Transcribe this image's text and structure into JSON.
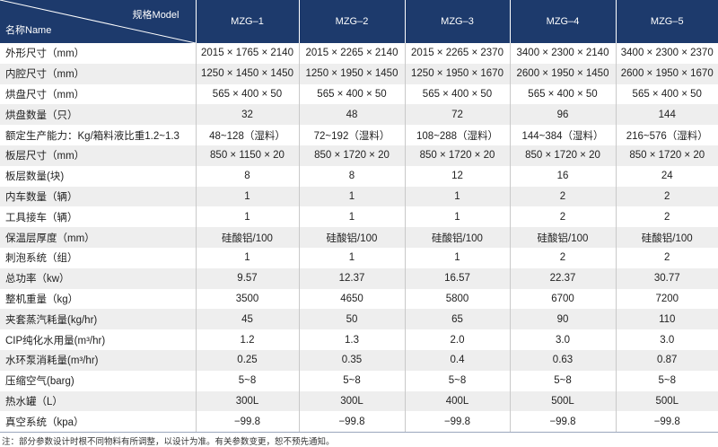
{
  "header": {
    "corner_top": "规格Model",
    "corner_bottom": "名称Name",
    "models": [
      "MZG–1",
      "MZG–2",
      "MZG–3",
      "MZG–4",
      "MZG–5"
    ]
  },
  "rows": [
    {
      "label": "外形尺寸（mm）",
      "cells": [
        "2015 × 1765 × 2140",
        "2015 × 2265 × 2140",
        "2015 × 2265 × 2370",
        "3400 × 2300 × 2140",
        "3400 × 2300 × 2370"
      ]
    },
    {
      "label": "内腔尺寸（mm）",
      "cells": [
        "1250 × 1450 × 1450",
        "1250 × 1950 × 1450",
        "1250 × 1950 × 1670",
        "2600 × 1950 × 1450",
        "2600 × 1950 × 1670"
      ]
    },
    {
      "label": "烘盘尺寸（mm）",
      "cells": [
        "565 × 400 × 50",
        "565 × 400 × 50",
        "565 × 400 × 50",
        "565 × 400 × 50",
        "565 × 400 × 50"
      ]
    },
    {
      "label": "烘盘数量（只）",
      "cells": [
        "32",
        "48",
        "72",
        "96",
        "144"
      ]
    },
    {
      "label": "额定生产能力：Kg/箱料液比重1.2~1.3",
      "cells": [
        "48~128（湿料）",
        "72~192（湿料）",
        "108~288（湿料）",
        "144~384（湿料）",
        "216~576（湿料）"
      ]
    },
    {
      "label": "板层尺寸（mm）",
      "cells": [
        "850 × 1150 × 20",
        "850 × 1720 × 20",
        "850 × 1720 × 20",
        "850 × 1720 × 20",
        "850 × 1720 × 20"
      ]
    },
    {
      "label": "板层数量(块)",
      "cells": [
        "8",
        "8",
        "12",
        "16",
        "24"
      ]
    },
    {
      "label": "内车数量（辆）",
      "cells": [
        "1",
        "1",
        "1",
        "2",
        "2"
      ]
    },
    {
      "label": "工具接车（辆）",
      "cells": [
        "1",
        "1",
        "1",
        "2",
        "2"
      ]
    },
    {
      "label": "保温层厚度（mm）",
      "cells": [
        "硅酸铝/100",
        "硅酸铝/100",
        "硅酸铝/100",
        "硅酸铝/100",
        "硅酸铝/100"
      ]
    },
    {
      "label": "刺泡系统（组）",
      "cells": [
        "1",
        "1",
        "1",
        "2",
        "2"
      ]
    },
    {
      "label": "总功率（kw）",
      "cells": [
        "9.57",
        "12.37",
        "16.57",
        "22.37",
        "30.77"
      ]
    },
    {
      "label": "整机重量（kg）",
      "cells": [
        "3500",
        "4650",
        "5800",
        "6700",
        "7200"
      ]
    },
    {
      "label": "夹套蒸汽耗量(kg/hr)",
      "cells": [
        "45",
        "50",
        "65",
        "90",
        "110"
      ]
    },
    {
      "label": "CIP纯化水用量(m³/hr)",
      "cells": [
        "1.2",
        "1.3",
        "2.0",
        "3.0",
        "3.0"
      ]
    },
    {
      "label": "水环泵消耗量(m³/hr)",
      "cells": [
        "0.25",
        "0.35",
        "0.4",
        "0.63",
        "0.87"
      ]
    },
    {
      "label": "压缩空气(barg)",
      "cells": [
        "5~8",
        "5~8",
        "5~8",
        "5~8",
        "5~8"
      ]
    },
    {
      "label": "热水罐（L）",
      "cells": [
        "300L",
        "300L",
        "400L",
        "500L",
        "500L"
      ]
    },
    {
      "label": "真空系统（kpa）",
      "cells": [
        "−99.8",
        "−99.8",
        "−99.8",
        "−99.8",
        "−99.8"
      ]
    }
  ],
  "note": "注：部分参数设计时根不同物料有所调整，以设计为准。有关参数变更，恕不预先通知。"
}
